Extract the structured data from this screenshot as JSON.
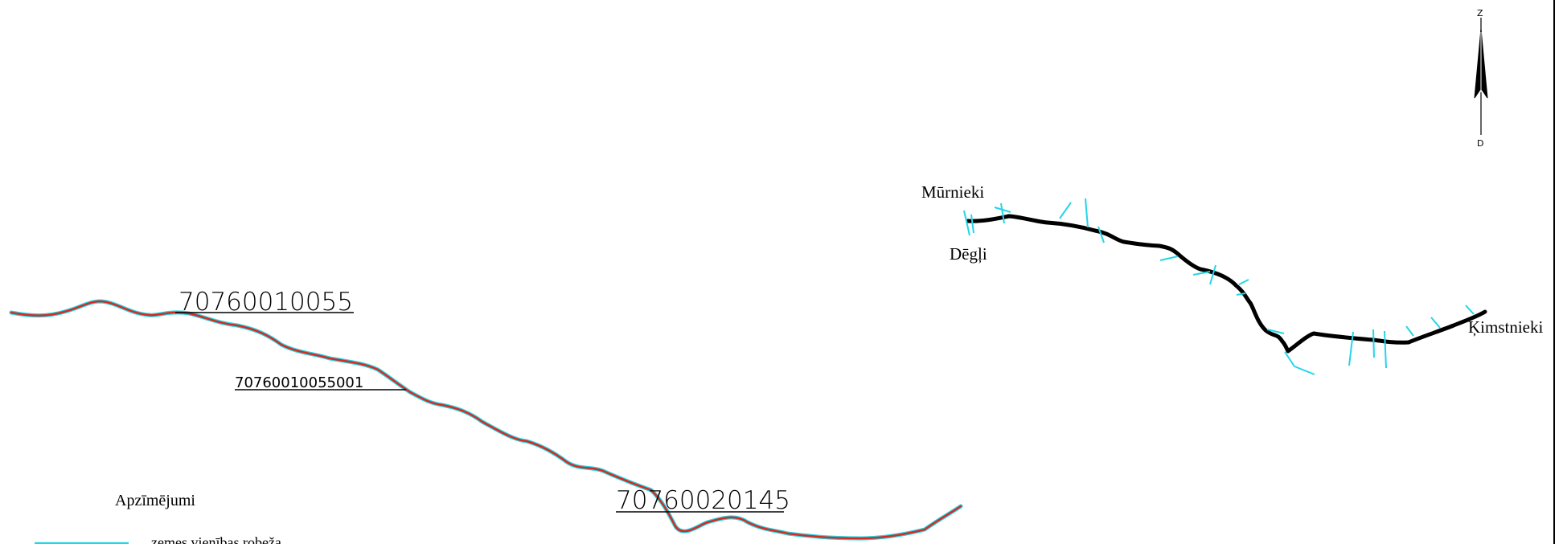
{
  "parcels": {
    "parcel_a_id": "70760010055",
    "parcel_a_subparcel_id": "70760010055001",
    "parcel_b_id": "70760020145"
  },
  "places": {
    "murnieki": "Mūrnieki",
    "degli": "Dēgļi",
    "kimstnieki": "Ķimstnieki"
  },
  "north_arrow": {
    "top_letter": "Z",
    "bottom_letter": "D"
  },
  "legend": {
    "title": "Apzīmējumi",
    "items": [
      {
        "label": "zemes vienības robeža",
        "color": "#22d6e6"
      }
    ]
  },
  "colors": {
    "boundary_cyan": "#22d6e6",
    "road_red": "#d62a21",
    "road_black": "#000000",
    "frame_line": "#000000"
  }
}
